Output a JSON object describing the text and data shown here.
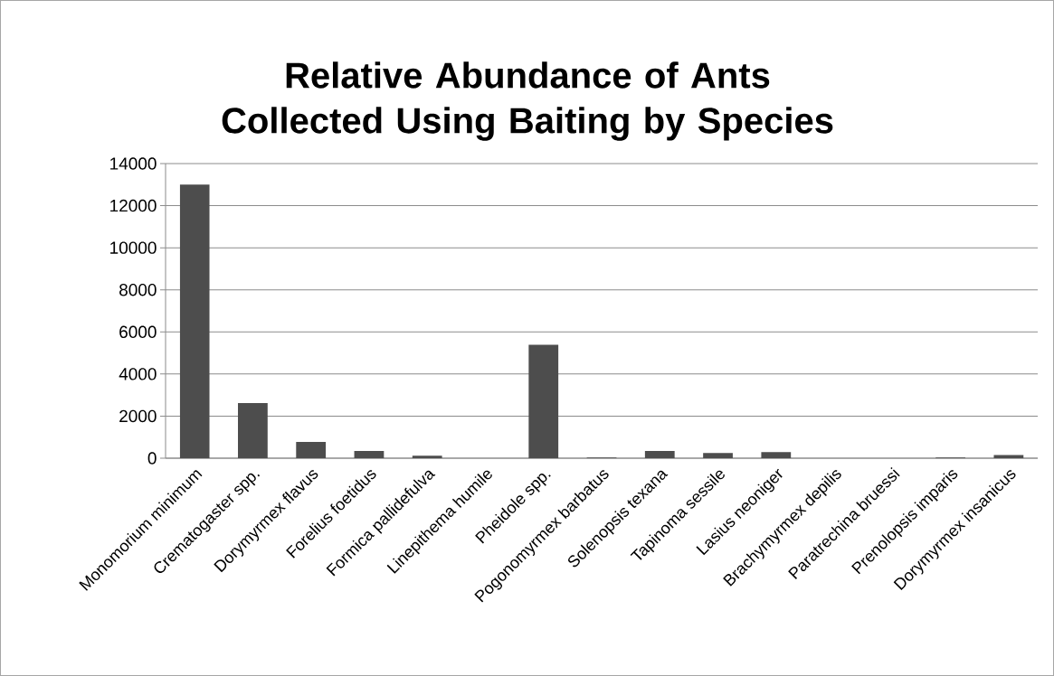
{
  "chart_data": {
    "type": "bar",
    "title": "Relative Abundance of Ants Collected Using Baiting by Species",
    "categories": [
      "Monomorium minimum",
      "Crematogaster spp.",
      "Dorymyrmex flavus",
      "Forelius foetidus",
      "Formica pallidefulva",
      "Linepithema humile",
      "Pheidole spp.",
      "Pogonomyrmex barbatus",
      "Solenopsis texana",
      "Tapinoma sessile",
      "Lasius neoniger",
      "Brachymyrmex depilis",
      "Paratrechina bruessi",
      "Prenolopsis imparis",
      "Dorymyrmex insanicus"
    ],
    "values": [
      13000,
      2620,
      770,
      340,
      120,
      0,
      5390,
      30,
      340,
      250,
      290,
      0,
      0,
      30,
      150
    ],
    "color": "#4d4d4d",
    "ylim": [
      0,
      14000
    ],
    "yticks": [
      0,
      2000,
      4000,
      6000,
      8000,
      10000,
      12000,
      14000
    ],
    "grid": "y"
  }
}
